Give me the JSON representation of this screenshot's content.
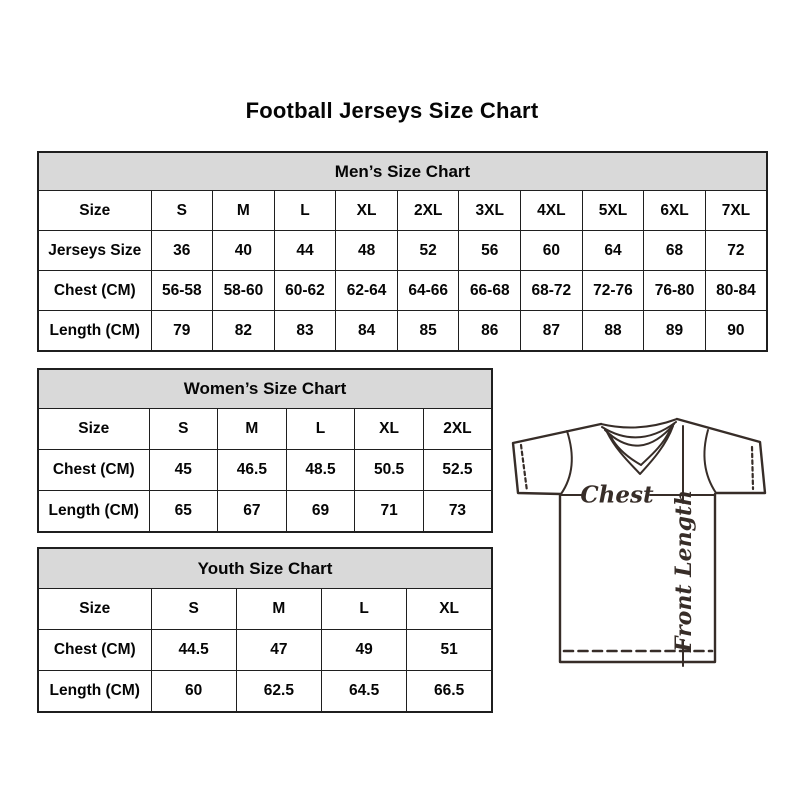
{
  "page_title": "Football Jerseys Size Chart",
  "colors": {
    "table_border": "#1f1f1f",
    "table_header_bg": "#d9d9d9",
    "text": "#050505",
    "jersey_line": "#372d28",
    "page_bg": "#ffffff"
  },
  "diagram": {
    "chest_label": "Chest",
    "front_length_label": "Front Length"
  },
  "chart_data": [
    {
      "type": "table",
      "title": "Men’s Size Chart",
      "columns": [
        "Size",
        "S",
        "M",
        "L",
        "XL",
        "2XL",
        "3XL",
        "4XL",
        "5XL",
        "6XL",
        "7XL"
      ],
      "rows": [
        [
          "Jerseys Size",
          "36",
          "40",
          "44",
          "48",
          "52",
          "56",
          "60",
          "64",
          "68",
          "72"
        ],
        [
          "Chest (CM)",
          "56-58",
          "58-60",
          "60-62",
          "62-64",
          "64-66",
          "66-68",
          "68-72",
          "72-76",
          "76-80",
          "80-84"
        ],
        [
          "Length (CM)",
          "79",
          "82",
          "83",
          "84",
          "85",
          "86",
          "87",
          "88",
          "89",
          "90"
        ]
      ]
    },
    {
      "type": "table",
      "title": "Women’s Size Chart",
      "columns": [
        "Size",
        "S",
        "M",
        "L",
        "XL",
        "2XL"
      ],
      "rows": [
        [
          "Chest (CM)",
          "45",
          "46.5",
          "48.5",
          "50.5",
          "52.5"
        ],
        [
          "Length (CM)",
          "65",
          "67",
          "69",
          "71",
          "73"
        ]
      ]
    },
    {
      "type": "table",
      "title": "Youth Size Chart",
      "columns": [
        "Size",
        "S",
        "M",
        "L",
        "XL"
      ],
      "rows": [
        [
          "Chest (CM)",
          "44.5",
          "47",
          "49",
          "51"
        ],
        [
          "Length (CM)",
          "60",
          "62.5",
          "64.5",
          "66.5"
        ]
      ]
    }
  ]
}
